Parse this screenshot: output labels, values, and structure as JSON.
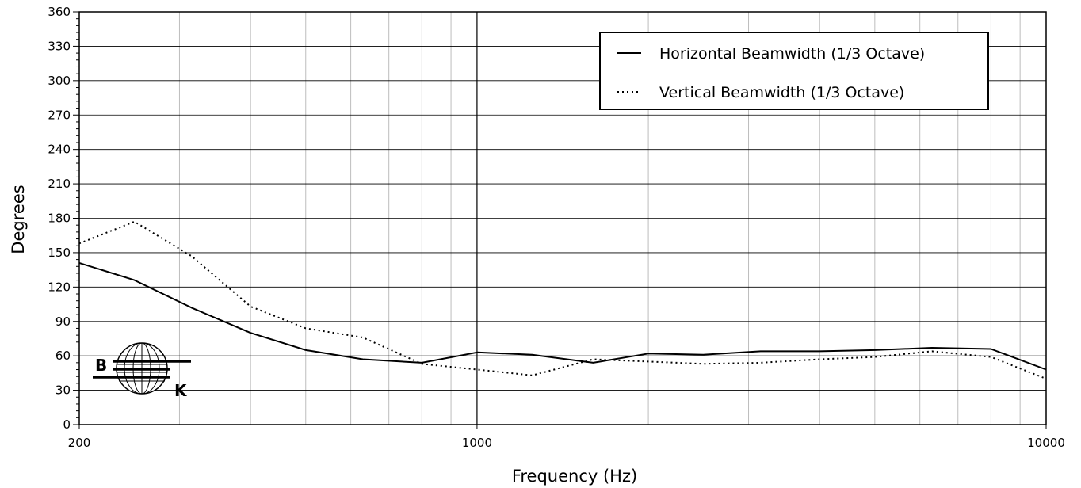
{
  "chart_data": {
    "type": "line",
    "title": "",
    "xlabel": "Frequency (Hz)",
    "ylabel": "Degrees",
    "x_scale": "log",
    "xlim": [
      200,
      10000
    ],
    "ylim": [
      0,
      360
    ],
    "x_tick_labels": [
      "200",
      "1000",
      "10000"
    ],
    "y_tick_labels": [
      "0",
      "30",
      "60",
      "90",
      "120",
      "150",
      "180",
      "210",
      "240",
      "270",
      "300",
      "330",
      "360"
    ],
    "grid": true,
    "legend_position": "top-right",
    "series": [
      {
        "name": "Horizontal Beamwidth (1/3 Octave)",
        "style": "solid",
        "color": "#000000",
        "x": [
          200,
          250,
          315,
          400,
          500,
          630,
          800,
          1000,
          1250,
          1600,
          2000,
          2500,
          3150,
          4000,
          5000,
          6300,
          8000,
          10000
        ],
        "y": [
          141,
          126,
          102,
          80,
          65,
          57,
          54,
          63,
          61,
          54,
          62,
          61,
          64,
          64,
          65,
          67,
          66,
          48
        ]
      },
      {
        "name": "Vertical Beamwidth (1/3 Octave)",
        "style": "dotted",
        "color": "#000000",
        "x": [
          200,
          250,
          315,
          400,
          500,
          630,
          800,
          1000,
          1250,
          1600,
          2000,
          2500,
          3150,
          4000,
          5000,
          6300,
          8000,
          10000
        ],
        "y": [
          158,
          177,
          147,
          103,
          84,
          76,
          53,
          48,
          43,
          57,
          55,
          53,
          54,
          57,
          59,
          64,
          59,
          40
        ]
      }
    ]
  },
  "logo": {
    "letter_left": "B",
    "letter_right": "K"
  }
}
